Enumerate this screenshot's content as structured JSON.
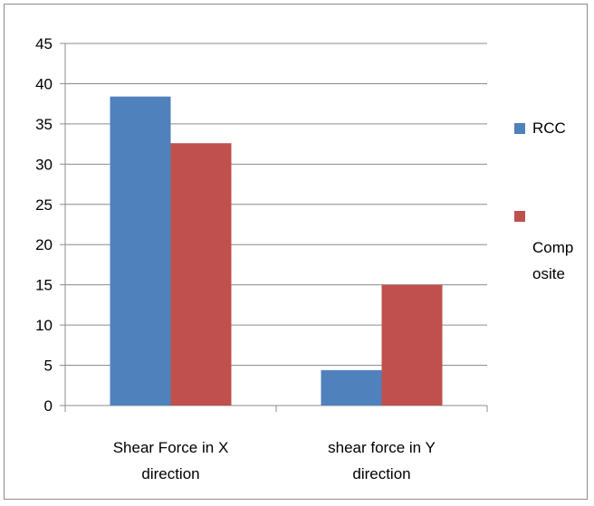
{
  "chart_data": {
    "type": "bar",
    "categories": [
      [
        "Shear Force in X",
        "direction"
      ],
      [
        "shear force in Y",
        "direction"
      ]
    ],
    "series": [
      {
        "name": "RCC",
        "color": "#4f81bd",
        "values": [
          38.4,
          4.4
        ]
      },
      {
        "name": "Composite",
        "legend_lines": [
          "Comp",
          "osite"
        ],
        "color": "#c0504d",
        "values": [
          32.6,
          15.0
        ]
      }
    ],
    "ylim": [
      0,
      45
    ],
    "yticks": [
      0,
      5,
      10,
      15,
      20,
      25,
      30,
      35,
      40,
      45
    ],
    "grid": true,
    "legend_position": "right"
  }
}
